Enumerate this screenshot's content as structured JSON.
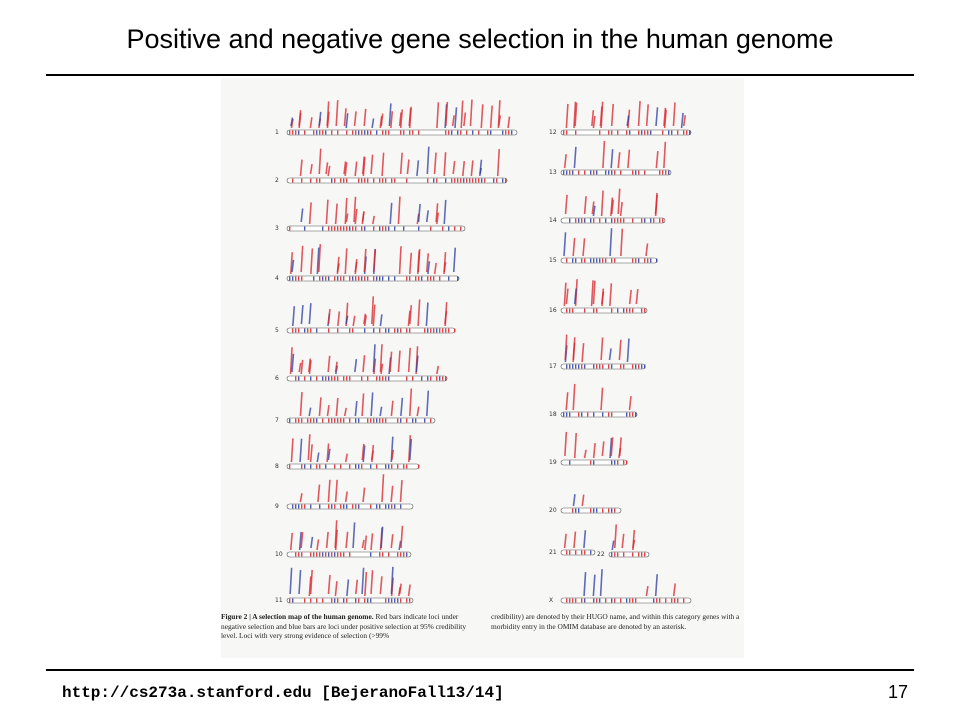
{
  "slide": {
    "title": "Positive and negative gene selection in the human genome",
    "footer_url": "http://cs273a.stanford.edu [BejeranoFall13/14]",
    "page_number": "17"
  },
  "figure": {
    "caption_heading": "Figure 2 | A selection map of the human genome.",
    "caption_left": " Red bars indicate loci under negative selection and blue bars are loci under positive selection at 95% credibility level. Loci with very strong evidence of selection (>99%",
    "caption_right": "credibility) are denoted by their HUGO name, and within this category genes with a morbidity entry in the OMIM database are denoted by an asterisk.",
    "colors": {
      "negative": "#d8242c",
      "positive": "#2b3ea3"
    },
    "chromosomes_left": [
      "1",
      "2",
      "3",
      "4",
      "5",
      "6",
      "7",
      "8",
      "9",
      "10",
      "11"
    ],
    "chromosomes_right": [
      "12",
      "13",
      "14",
      "15",
      "16",
      "17",
      "18",
      "19",
      "20",
      "21",
      "22",
      "X"
    ]
  }
}
